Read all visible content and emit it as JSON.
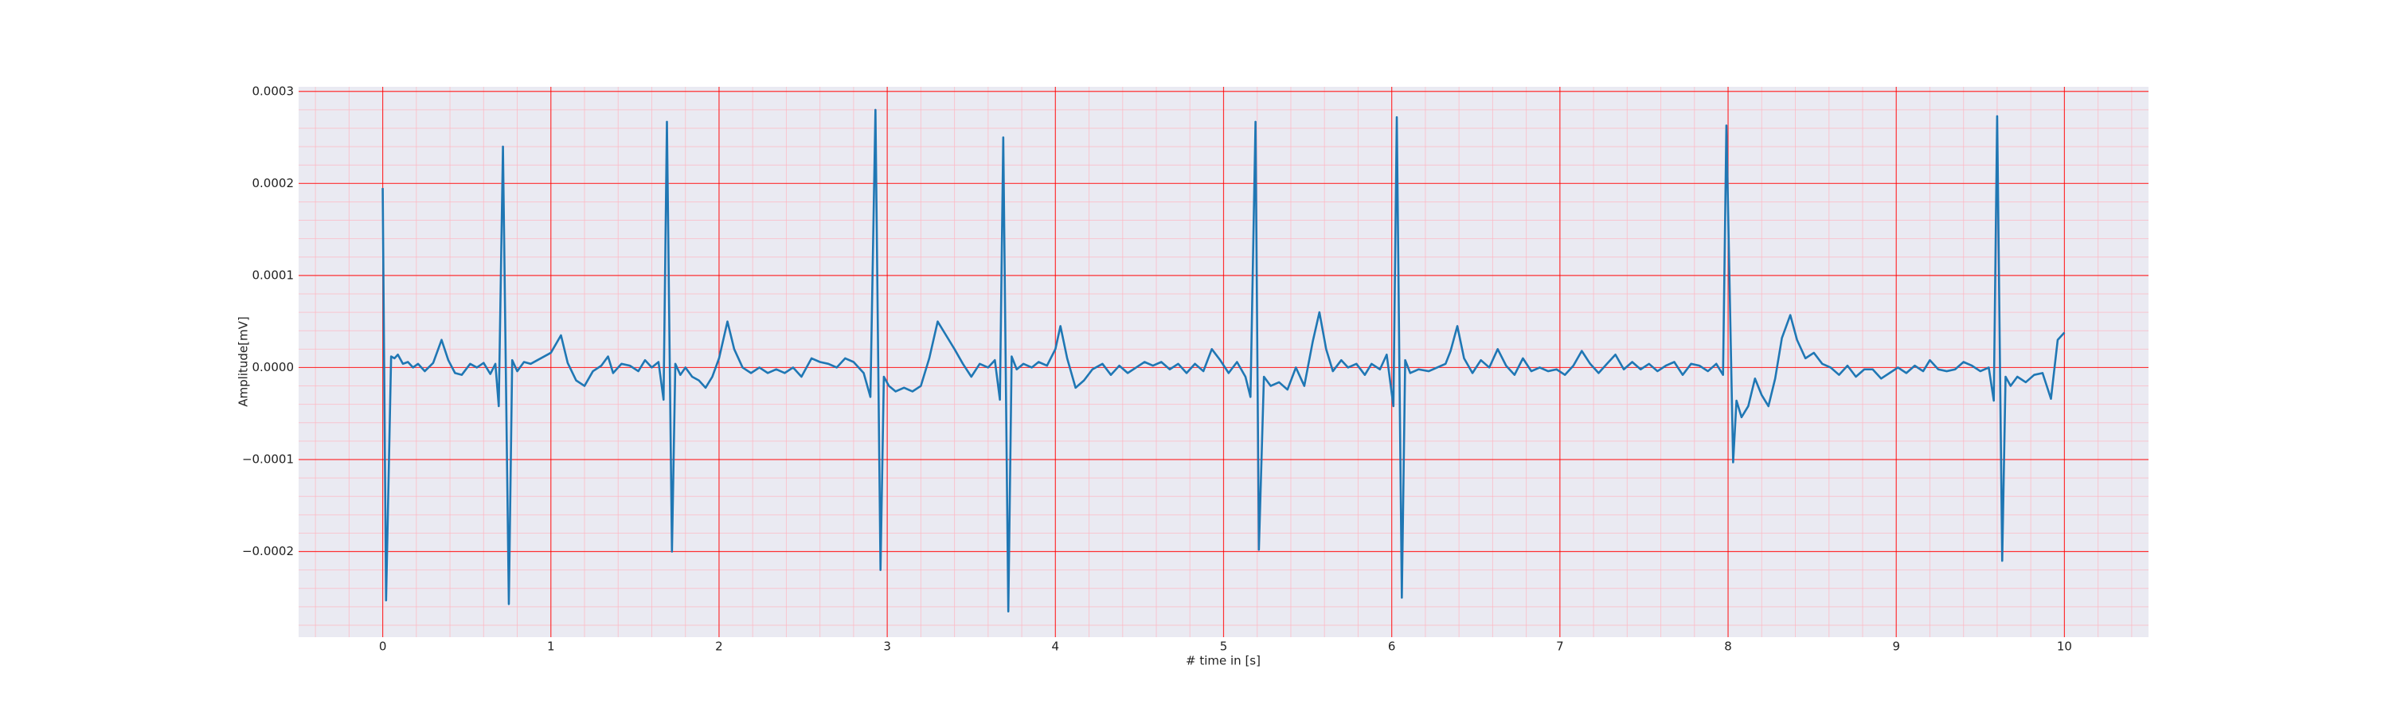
{
  "chart_data": {
    "type": "line",
    "xlabel": "# time in [s]",
    "ylabel": "Amplitude[mV]",
    "color": "#1f77b4",
    "grid_color": "#ff0000",
    "minor_grid_color": "#ffb6c1",
    "background": "#eaeaf2",
    "grid": true,
    "minor_grid": true,
    "xlim": [
      -0.5,
      10.5
    ],
    "xticks": [
      0,
      1,
      2,
      3,
      4,
      5,
      6,
      7,
      8,
      9,
      10
    ],
    "ylim": [
      -0.000293,
      0.000305
    ],
    "yticks": [
      {
        "value": -0.0002,
        "label": "−0.0002"
      },
      {
        "value": -0.0001,
        "label": "−0.0001"
      },
      {
        "value": 0,
        "label": "0.0000"
      },
      {
        "value": 0.0001,
        "label": "0.0001"
      },
      {
        "value": 0.0002,
        "label": "0.0002"
      },
      {
        "value": 0.0003,
        "label": "0.0003"
      }
    ],
    "x": [
      0.0,
      0.02,
      0.05,
      0.07,
      0.09,
      0.12,
      0.15,
      0.18,
      0.21,
      0.25,
      0.3,
      0.35,
      0.39,
      0.43,
      0.47,
      0.52,
      0.56,
      0.6,
      0.64,
      0.67,
      0.69,
      0.715,
      0.75,
      0.77,
      0.8,
      0.84,
      0.88,
      0.92,
      0.96,
      1.0,
      1.06,
      1.1,
      1.15,
      1.2,
      1.25,
      1.3,
      1.34,
      1.37,
      1.42,
      1.47,
      1.52,
      1.56,
      1.6,
      1.64,
      1.67,
      1.69,
      1.72,
      1.74,
      1.77,
      1.8,
      1.84,
      1.88,
      1.92,
      1.96,
      2.0,
      2.05,
      2.09,
      2.14,
      2.19,
      2.24,
      2.29,
      2.34,
      2.39,
      2.44,
      2.49,
      2.55,
      2.6,
      2.65,
      2.7,
      2.75,
      2.8,
      2.86,
      2.9,
      2.93,
      2.96,
      2.98,
      3.01,
      3.05,
      3.1,
      3.15,
      3.2,
      3.25,
      3.3,
      3.35,
      3.4,
      3.45,
      3.5,
      3.55,
      3.6,
      3.64,
      3.67,
      3.69,
      3.72,
      3.74,
      3.77,
      3.81,
      3.86,
      3.9,
      3.95,
      4.0,
      4.03,
      4.07,
      4.12,
      4.17,
      4.22,
      4.28,
      4.33,
      4.38,
      4.43,
      4.48,
      4.53,
      4.58,
      4.63,
      4.68,
      4.73,
      4.78,
      4.83,
      4.88,
      4.93,
      4.98,
      5.03,
      5.08,
      5.13,
      5.16,
      5.19,
      5.21,
      5.24,
      5.28,
      5.33,
      5.38,
      5.43,
      5.48,
      5.53,
      5.57,
      5.61,
      5.65,
      5.7,
      5.74,
      5.79,
      5.84,
      5.88,
      5.93,
      5.97,
      6.01,
      6.03,
      6.06,
      6.08,
      6.11,
      6.16,
      6.22,
      6.27,
      6.32,
      6.35,
      6.39,
      6.43,
      6.48,
      6.53,
      6.58,
      6.63,
      6.68,
      6.73,
      6.78,
      6.83,
      6.88,
      6.93,
      6.98,
      7.03,
      7.08,
      7.13,
      7.18,
      7.23,
      7.28,
      7.33,
      7.38,
      7.43,
      7.48,
      7.53,
      7.58,
      7.63,
      7.68,
      7.73,
      7.78,
      7.83,
      7.88,
      7.93,
      7.97,
      7.99,
      8.03,
      8.05,
      8.08,
      8.12,
      8.16,
      8.2,
      8.24,
      8.28,
      8.32,
      8.37,
      8.41,
      8.46,
      8.51,
      8.56,
      8.61,
      8.66,
      8.71,
      8.76,
      8.81,
      8.86,
      8.91,
      8.96,
      9.01,
      9.06,
      9.11,
      9.16,
      9.2,
      9.25,
      9.3,
      9.35,
      9.4,
      9.45,
      9.5,
      9.55,
      9.58,
      9.6,
      9.63,
      9.65,
      9.68,
      9.72,
      9.77,
      9.82,
      9.87,
      9.92,
      9.96,
      10.0
    ],
    "values": [
      0.000195,
      -0.000253,
      1.2e-05,
      1e-05,
      1.4e-05,
      4e-06,
      6e-06,
      0,
      4e-06,
      -4e-06,
      5e-06,
      3e-05,
      8e-06,
      -6e-06,
      -8e-06,
      4e-06,
      0,
      5e-06,
      -7e-06,
      4e-06,
      -4.2e-05,
      0.00024,
      -0.000257,
      8e-06,
      -4e-06,
      6e-06,
      4e-06,
      8e-06,
      1.2e-05,
      1.6e-05,
      3.5e-05,
      5e-06,
      -1.4e-05,
      -2e-05,
      -4e-06,
      2e-06,
      1.2e-05,
      -6e-06,
      4e-06,
      2e-06,
      -4e-06,
      8e-06,
      0,
      6e-06,
      -3.5e-05,
      0.000267,
      -0.0002,
      4e-06,
      -8e-06,
      0,
      -1e-05,
      -1.4e-05,
      -2.2e-05,
      -1e-05,
      1e-05,
      5e-05,
      2e-05,
      0,
      -6e-06,
      0,
      -6e-06,
      -2e-06,
      -6e-06,
      0,
      -1e-05,
      1e-05,
      6e-06,
      4e-06,
      0,
      1e-05,
      6e-06,
      -6e-06,
      -3.2e-05,
      0.00028,
      -0.00022,
      -1e-05,
      -2e-05,
      -2.6e-05,
      -2.2e-05,
      -2.6e-05,
      -2e-05,
      1e-05,
      5e-05,
      3.5e-05,
      2e-05,
      4e-06,
      -1e-05,
      4e-06,
      0,
      8e-06,
      -3.5e-05,
      0.00025,
      -0.000265,
      1.2e-05,
      -2e-06,
      4e-06,
      0,
      6e-06,
      2e-06,
      2e-05,
      4.5e-05,
      1e-05,
      -2.2e-05,
      -1.4e-05,
      -2e-06,
      4e-06,
      -8e-06,
      2e-06,
      -6e-06,
      0,
      6e-06,
      2e-06,
      6e-06,
      -2e-06,
      4e-06,
      -6e-06,
      4e-06,
      -4e-06,
      2e-05,
      8e-06,
      -6e-06,
      6e-06,
      -1e-05,
      -3.2e-05,
      0.000267,
      -0.000198,
      -1e-05,
      -2e-05,
      -1.6e-05,
      -2.4e-05,
      0,
      -2e-05,
      2.8e-05,
      6e-05,
      2e-05,
      -4e-06,
      8e-06,
      0,
      4e-06,
      -8e-06,
      4e-06,
      -2e-06,
      1.4e-05,
      -4.2e-05,
      0.000272,
      -0.00025,
      8e-06,
      -6e-06,
      -2e-06,
      -4e-06,
      0,
      4e-06,
      1.8e-05,
      4.5e-05,
      1e-05,
      -6e-06,
      8e-06,
      0,
      2e-05,
      2e-06,
      -8e-06,
      1e-05,
      -4e-06,
      0,
      -4e-06,
      -2e-06,
      -8e-06,
      2e-06,
      1.8e-05,
      4e-06,
      -6e-06,
      4e-06,
      1.4e-05,
      -2e-06,
      6e-06,
      -2e-06,
      4e-06,
      -4e-06,
      2e-06,
      6e-06,
      -8e-06,
      4e-06,
      2e-06,
      -4e-06,
      4e-06,
      -8e-06,
      0.000263,
      -0.000103,
      -3.6e-05,
      -5.4e-05,
      -4.2e-05,
      -1.2e-05,
      -3e-05,
      -4.2e-05,
      -1.2e-05,
      3.2e-05,
      5.7e-05,
      3e-05,
      1e-05,
      1.6e-05,
      4e-06,
      0,
      -8e-06,
      2e-06,
      -1e-05,
      -2e-06,
      -2e-06,
      -1.2e-05,
      -6e-06,
      0,
      -6e-06,
      2e-06,
      -4e-06,
      8e-06,
      -2e-06,
      -4e-06,
      -2e-06,
      6e-06,
      2e-06,
      -4e-06,
      0,
      -3.6e-05,
      0.000273,
      -0.00021,
      -1e-05,
      -2e-05,
      -1e-05,
      -1.6e-05,
      -8e-06,
      -6e-06,
      -3.4e-05,
      3e-05,
      3.8e-05
    ]
  }
}
